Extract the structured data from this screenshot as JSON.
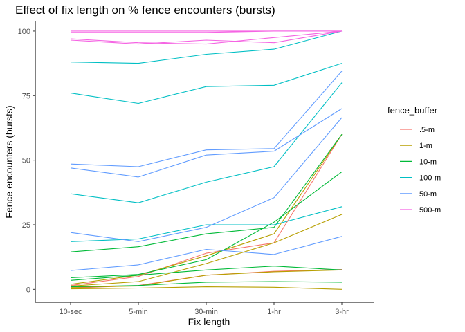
{
  "chart_data": {
    "type": "line",
    "title": "Effect of fix length on % fence encounters (bursts)",
    "xlabel": "Fix length",
    "ylabel": "Fence encounters (bursts)",
    "categories": [
      "10-sec",
      "5-min",
      "30-min",
      "1-hr",
      "3-hr"
    ],
    "ylim": [
      -5,
      104
    ],
    "yticks": [
      0,
      25,
      50,
      75,
      100
    ],
    "grid": false,
    "legend": {
      "title": "fence_buffer",
      "placement": "right",
      "entries": [
        {
          "label": ".5-m",
          "color": "#F8766D"
        },
        {
          "label": "1-m",
          "color": "#B79F00"
        },
        {
          "label": "10-m",
          "color": "#00BA38"
        },
        {
          "label": "100-m",
          "color": "#00BFC4"
        },
        {
          "label": "50-m",
          "color": "#619CFF"
        },
        {
          "label": "500-m",
          "color": "#F564E3"
        }
      ]
    },
    "series": [
      {
        "group": ".5-m",
        "values": [
          1.5,
          5.0,
          14.0,
          18.0,
          60.0
        ]
      },
      {
        "group": ".5-m",
        "values": [
          0.5,
          1.5,
          5.5,
          7.0,
          7.7
        ]
      },
      {
        "group": "1-m",
        "values": [
          2.0,
          5.5,
          13.0,
          21.5,
          60.0
        ]
      },
      {
        "group": "1-m",
        "values": [
          1.3,
          3.0,
          10.0,
          18.0,
          29.0
        ]
      },
      {
        "group": "1-m",
        "values": [
          0.8,
          1.3,
          5.5,
          6.8,
          7.5
        ]
      },
      {
        "group": "1-m",
        "values": [
          0.2,
          0.5,
          1.0,
          0.8,
          0.0
        ]
      },
      {
        "group": "10-m",
        "values": [
          14.5,
          16.5,
          21.5,
          24.0,
          60.0
        ]
      },
      {
        "group": "10-m",
        "values": [
          4.5,
          5.8,
          11.5,
          26.0,
          45.5
        ]
      },
      {
        "group": "10-m",
        "values": [
          3.5,
          5.5,
          7.5,
          9.0,
          7.5
        ]
      },
      {
        "group": "10-m",
        "values": [
          1.0,
          1.5,
          2.8,
          3.0,
          2.8
        ]
      },
      {
        "group": "100-m",
        "values": [
          88.0,
          87.5,
          91.0,
          93.0,
          100.0
        ]
      },
      {
        "group": "100-m",
        "values": [
          76.0,
          72.0,
          78.5,
          79.0,
          87.5
        ]
      },
      {
        "group": "100-m",
        "values": [
          37.0,
          33.5,
          41.5,
          47.5,
          80.0
        ]
      },
      {
        "group": "100-m",
        "values": [
          18.5,
          19.5,
          25.0,
          25.0,
          32.0
        ]
      },
      {
        "group": "50-m",
        "values": [
          48.5,
          47.5,
          54.0,
          54.5,
          84.5
        ]
      },
      {
        "group": "50-m",
        "values": [
          47.0,
          43.5,
          52.0,
          53.5,
          70.0
        ]
      },
      {
        "group": "50-m",
        "values": [
          22.0,
          18.5,
          24.0,
          35.5,
          66.5
        ]
      },
      {
        "group": "50-m",
        "values": [
          7.3,
          9.5,
          15.5,
          13.5,
          20.5
        ]
      },
      {
        "group": "500-m",
        "values": [
          100.0,
          100.0,
          100.0,
          100.0,
          100.0
        ]
      },
      {
        "group": "500-m",
        "values": [
          99.5,
          99.5,
          99.5,
          100.0,
          100.0
        ]
      },
      {
        "group": "500-m",
        "values": [
          97.0,
          95.5,
          95.0,
          97.5,
          100.0
        ]
      },
      {
        "group": "500-m",
        "values": [
          96.5,
          95.0,
          96.5,
          95.5,
          100.0
        ]
      }
    ]
  }
}
